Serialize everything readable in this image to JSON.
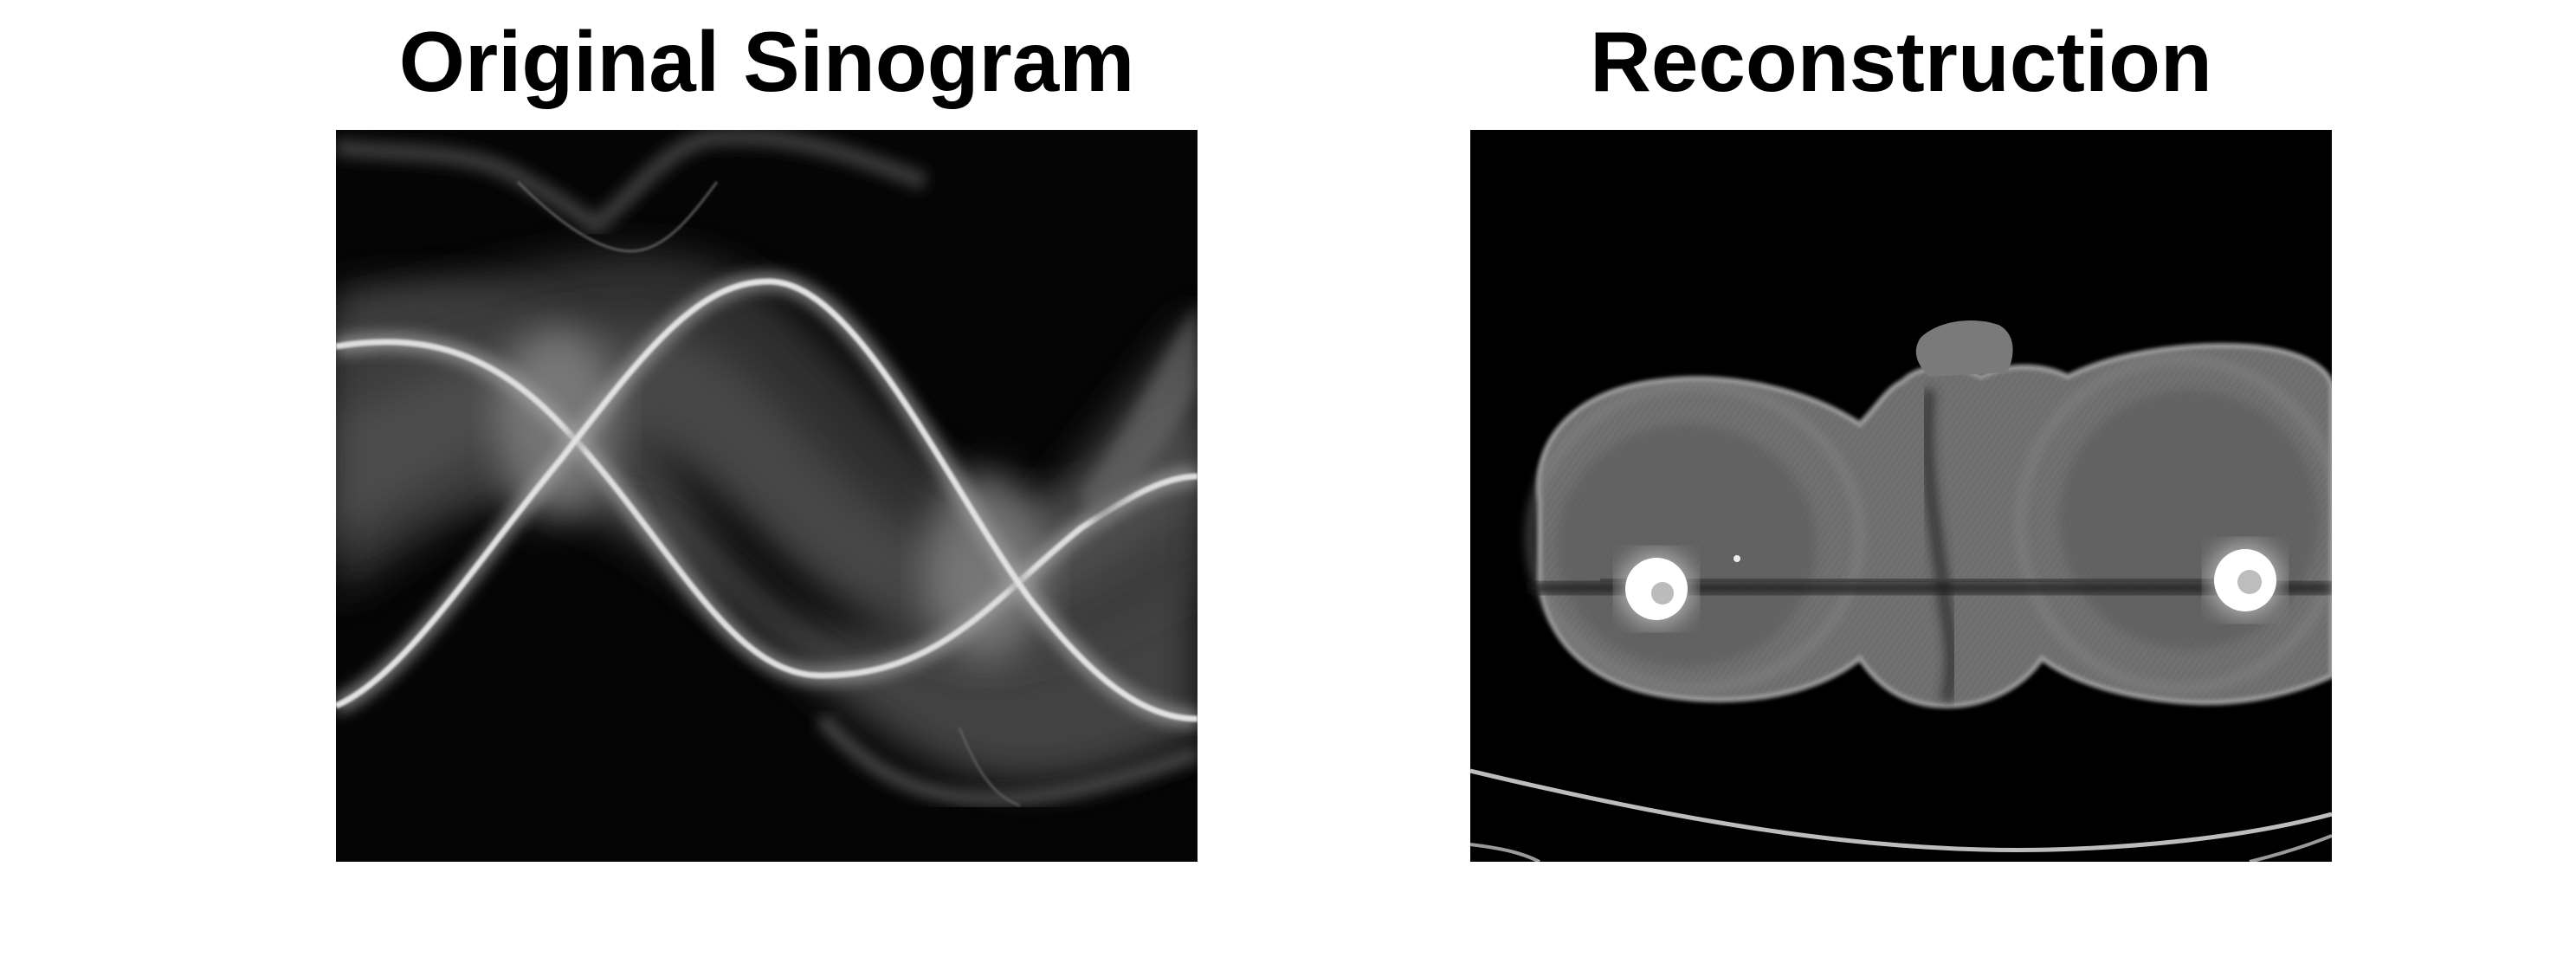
{
  "figure": {
    "panels": [
      {
        "title": "Original Sinogram",
        "image": "sinogram-image"
      },
      {
        "title": "Reconstruction",
        "image": "ct-reconstruction-image"
      }
    ]
  },
  "colors": {
    "background": "#ffffff",
    "image_background": "#000000",
    "title": "#000000"
  }
}
